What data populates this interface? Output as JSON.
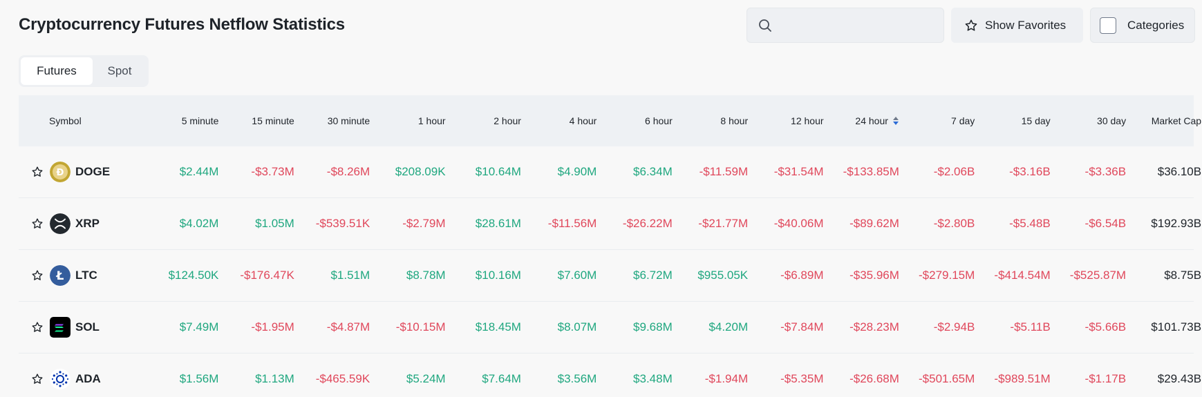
{
  "page": {
    "title": "Cryptocurrency Futures Netflow Statistics"
  },
  "search": {
    "value": "",
    "placeholder": "",
    "icon": "search-icon"
  },
  "favorites_button": {
    "label": "Show Favorites",
    "icon": "star-icon"
  },
  "categories_button": {
    "label": "Categories",
    "checked": false
  },
  "tabs": [
    {
      "label": "Futures",
      "active": true
    },
    {
      "label": "Spot",
      "active": false
    }
  ],
  "table": {
    "columns": [
      "Symbol",
      "5 minute",
      "15 minute",
      "30 minute",
      "1 hour",
      "2 hour",
      "4 hour",
      "6 hour",
      "8 hour",
      "12 hour",
      "24 hour",
      "7 day",
      "15 day",
      "30 day",
      "Market Cap"
    ],
    "sorted_column": "24 hour",
    "rows": [
      {
        "symbol": "DOGE",
        "icon": "doge-coin-icon",
        "values": [
          "$2.44M",
          "-$3.73M",
          "-$8.26M",
          "$208.09K",
          "$10.64M",
          "$4.90M",
          "$6.34M",
          "-$11.59M",
          "-$31.54M",
          "-$133.85M",
          "-$2.06B",
          "-$3.16B",
          "-$3.36B"
        ],
        "market_cap": "$36.10B"
      },
      {
        "symbol": "XRP",
        "icon": "xrp-coin-icon",
        "values": [
          "$4.02M",
          "$1.05M",
          "-$539.51K",
          "-$2.79M",
          "$28.61M",
          "-$11.56M",
          "-$26.22M",
          "-$21.77M",
          "-$40.06M",
          "-$89.62M",
          "-$2.80B",
          "-$5.48B",
          "-$6.54B"
        ],
        "market_cap": "$192.93B"
      },
      {
        "symbol": "LTC",
        "icon": "ltc-coin-icon",
        "values": [
          "$124.50K",
          "-$176.47K",
          "$1.51M",
          "$8.78M",
          "$10.16M",
          "$7.60M",
          "$6.72M",
          "$955.05K",
          "-$6.89M",
          "-$35.96M",
          "-$279.15M",
          "-$414.54M",
          "-$525.87M"
        ],
        "market_cap": "$8.75B"
      },
      {
        "symbol": "SOL",
        "icon": "sol-coin-icon",
        "values": [
          "$7.49M",
          "-$1.95M",
          "-$4.87M",
          "-$10.15M",
          "$18.45M",
          "$8.07M",
          "$9.68M",
          "$4.20M",
          "-$7.84M",
          "-$28.23M",
          "-$2.94B",
          "-$5.11B",
          "-$5.66B"
        ],
        "market_cap": "$101.73B"
      },
      {
        "symbol": "ADA",
        "icon": "ada-coin-icon",
        "values": [
          "$1.56M",
          "$1.13M",
          "-$465.59K",
          "$5.24M",
          "$7.64M",
          "$3.56M",
          "$3.48M",
          "-$1.94M",
          "-$5.35M",
          "-$26.68M",
          "-$501.65M",
          "-$989.51M",
          "-$1.17B"
        ],
        "market_cap": "$29.43B"
      }
    ]
  },
  "colors": {
    "positive": "#1fa77f",
    "negative": "#e0475b",
    "header_bg": "#eef1f4",
    "accent_sort": "#2b6bd6"
  }
}
